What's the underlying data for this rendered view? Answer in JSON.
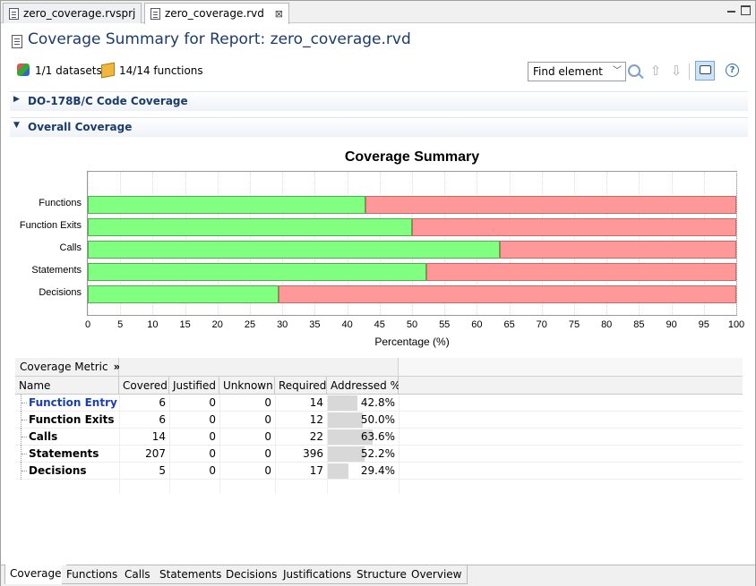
{
  "editor_tabs": [
    {
      "label": "zero_coverage.rvsprj",
      "active": false
    },
    {
      "label": "zero_coverage.rvd",
      "active": true,
      "closable": true
    }
  ],
  "window_controls": [
    "minimize-icon",
    "maximize-icon"
  ],
  "header": {
    "title": "Coverage Summary for Report: zero_coverage.rvd",
    "datasets": "1/1 datasets",
    "functions": "14/14 functions",
    "find_placeholder": "Find element"
  },
  "toolbar_icons": [
    "find-icon",
    "arrow-up-icon",
    "arrow-down-icon",
    "comment-icon",
    "help-icon"
  ],
  "sections": [
    {
      "label": "DO-178B/C Code Coverage",
      "expanded": false
    },
    {
      "label": "Overall Coverage",
      "expanded": true
    }
  ],
  "colors": {
    "covered": "#80ff80",
    "uncovered": "#ff9999",
    "title": "#1a3b6b",
    "link": "#1a3fb5"
  },
  "chart_data": {
    "type": "bar",
    "orientation": "horizontal",
    "stacked": true,
    "title": "Coverage Summary",
    "xlabel": "Percentage (%)",
    "ylabel": "",
    "xlim": [
      0,
      100
    ],
    "xticks": [
      0,
      5,
      10,
      15,
      20,
      25,
      30,
      35,
      40,
      45,
      50,
      55,
      60,
      65,
      70,
      75,
      80,
      85,
      90,
      95,
      100
    ],
    "categories": [
      "Functions",
      "Function Exits",
      "Calls",
      "Statements",
      "Decisions"
    ],
    "series": [
      {
        "values": [
          42.8,
          50.0,
          63.6,
          52.2,
          29.4
        ],
        "color": "#80ff80"
      },
      {
        "values": [
          57.2,
          50.0,
          36.4,
          47.8,
          70.6
        ],
        "color": "#ff9999"
      }
    ],
    "grid": false,
    "legend": "none"
  },
  "table": {
    "group_header": "Coverage Metric",
    "group_header_icon": "double-chevron-right-icon",
    "columns": [
      "Name",
      "Covered",
      "Justified",
      "Unknown",
      "Required",
      "Addressed %"
    ],
    "rows": [
      {
        "name": "Function Entry",
        "covered": "6",
        "justified": "0",
        "unknown": "0",
        "required": "14",
        "addressed": "42.8%",
        "addressed_value": 42.8,
        "highlight": true
      },
      {
        "name": "Function Exits",
        "covered": "6",
        "justified": "0",
        "unknown": "0",
        "required": "12",
        "addressed": "50.0%",
        "addressed_value": 50.0,
        "highlight": false
      },
      {
        "name": "Calls",
        "covered": "14",
        "justified": "0",
        "unknown": "0",
        "required": "22",
        "addressed": "63.6%",
        "addressed_value": 63.6,
        "highlight": false
      },
      {
        "name": "Statements",
        "covered": "207",
        "justified": "0",
        "unknown": "0",
        "required": "396",
        "addressed": "52.2%",
        "addressed_value": 52.2,
        "highlight": false
      },
      {
        "name": "Decisions",
        "covered": "5",
        "justified": "0",
        "unknown": "0",
        "required": "17",
        "addressed": "29.4%",
        "addressed_value": 29.4,
        "highlight": false
      }
    ]
  },
  "bottom_tabs": [
    {
      "label": "Coverage",
      "active": true
    },
    {
      "label": "Functions",
      "active": false
    },
    {
      "label": "Calls",
      "active": false
    },
    {
      "label": "Statements",
      "active": false
    },
    {
      "label": "Decisions",
      "active": false
    },
    {
      "label": "Justifications",
      "active": false
    },
    {
      "label": "Structure",
      "active": false
    },
    {
      "label": "Overview",
      "active": false
    }
  ]
}
